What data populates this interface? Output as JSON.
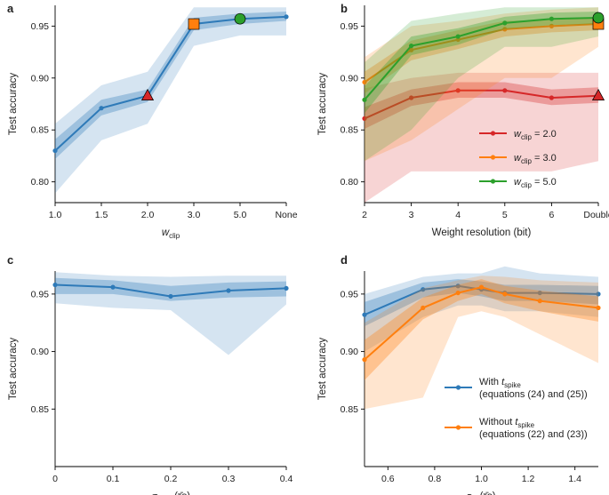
{
  "chart_data": [
    {
      "panel": "a",
      "type": "line",
      "xlabel_main": "w",
      "xlabel_sub": "clip",
      "ylabel": "Test accuracy",
      "ylim": [
        0.78,
        0.97
      ],
      "yticks": [
        0.8,
        0.85,
        0.9,
        0.95
      ],
      "ytick_labels": [
        "0.80",
        "0.85",
        "0.90",
        "0.95"
      ],
      "categories": [
        "1.0",
        "1.5",
        "2.0",
        "3.0",
        "5.0",
        "None"
      ],
      "series": [
        {
          "name": "accuracy",
          "color": "#2e7ab8",
          "values": [
            0.83,
            0.871,
            0.883,
            0.952,
            0.957,
            0.959
          ],
          "inner_low": [
            0.822,
            0.864,
            0.877,
            0.946,
            0.952,
            0.955
          ],
          "inner_high": [
            0.841,
            0.879,
            0.889,
            0.958,
            0.962,
            0.964
          ],
          "outer_low": [
            0.789,
            0.84,
            0.856,
            0.931,
            0.941,
            0.941
          ],
          "outer_high": [
            0.856,
            0.893,
            0.906,
            0.968,
            0.968,
            0.968
          ]
        }
      ],
      "markers": [
        {
          "index": 2,
          "shape": "triangle",
          "color": "#d62728"
        },
        {
          "index": 3,
          "shape": "square",
          "color": "#ff7f0e"
        },
        {
          "index": 4,
          "shape": "circle",
          "color": "#2ca02c"
        }
      ]
    },
    {
      "panel": "b",
      "type": "line",
      "xlabel": "Weight resolution (bit)",
      "ylabel": "Test accuracy",
      "ylim": [
        0.78,
        0.97
      ],
      "yticks": [
        0.8,
        0.85,
        0.9,
        0.95
      ],
      "ytick_labels": [
        "0.80",
        "0.85",
        "0.90",
        "0.95"
      ],
      "categories": [
        "2",
        "3",
        "4",
        "5",
        "6",
        "Double"
      ],
      "legend_position": "lower-right",
      "series": [
        {
          "name": "2.0",
          "legend_prefix": "w",
          "legend_sub": "clip",
          "legend_suffix": " = 2.0",
          "color": "#d62728",
          "values": [
            0.861,
            0.881,
            0.888,
            0.888,
            0.881,
            0.883
          ],
          "inner_low": [
            0.851,
            0.873,
            0.881,
            0.881,
            0.874,
            0.876
          ],
          "inner_high": [
            0.872,
            0.889,
            0.896,
            0.896,
            0.889,
            0.891
          ],
          "outer_low": [
            0.78,
            0.81,
            0.81,
            0.81,
            0.81,
            0.82
          ],
          "outer_high": [
            0.89,
            0.9,
            0.905,
            0.905,
            0.905,
            0.905
          ]
        },
        {
          "name": "3.0",
          "legend_prefix": "w",
          "legend_sub": "clip",
          "legend_suffix": " = 3.0",
          "color": "#ff7f0e",
          "values": [
            0.896,
            0.927,
            0.937,
            0.947,
            0.95,
            0.952
          ],
          "inner_low": [
            0.885,
            0.917,
            0.928,
            0.94,
            0.944,
            0.946
          ],
          "inner_high": [
            0.906,
            0.936,
            0.946,
            0.955,
            0.956,
            0.958
          ],
          "outer_low": [
            0.82,
            0.84,
            0.87,
            0.9,
            0.9,
            0.93
          ],
          "outer_high": [
            0.92,
            0.95,
            0.955,
            0.962,
            0.966,
            0.968
          ]
        },
        {
          "name": "5.0",
          "legend_prefix": "w",
          "legend_sub": "clip",
          "legend_suffix": " = 5.0",
          "color": "#2ca02c",
          "values": [
            0.879,
            0.931,
            0.94,
            0.953,
            0.957,
            0.958
          ],
          "inner_low": [
            0.866,
            0.922,
            0.932,
            0.947,
            0.951,
            0.952
          ],
          "inner_high": [
            0.892,
            0.94,
            0.948,
            0.959,
            0.963,
            0.964
          ],
          "outer_low": [
            0.82,
            0.85,
            0.9,
            0.93,
            0.93,
            0.94
          ],
          "outer_high": [
            0.915,
            0.955,
            0.962,
            0.968,
            0.968,
            0.968
          ]
        }
      ],
      "markers": [
        {
          "series": 0,
          "index": 5,
          "shape": "triangle",
          "color": "#d62728"
        },
        {
          "series": 1,
          "index": 5,
          "shape": "square",
          "color": "#ff7f0e"
        },
        {
          "series": 2,
          "index": 5,
          "shape": "circle",
          "color": "#2ca02c"
        }
      ]
    },
    {
      "panel": "c",
      "type": "line",
      "xlabel_main": "σ",
      "xlabel_sub": "τs/m",
      "xlabel_tail": " (τ̄s)",
      "ylabel": "Test accuracy",
      "ylim": [
        0.8,
        0.97
      ],
      "xlim": [
        0,
        0.4
      ],
      "yticks": [
        0.85,
        0.9,
        0.95
      ],
      "ytick_labels": [
        "0.85",
        "0.90",
        "0.95"
      ],
      "xticks": [
        0,
        0.1,
        0.2,
        0.3,
        0.4
      ],
      "xtick_labels": [
        "0",
        "0.1",
        "0.2",
        "0.3",
        "0.4"
      ],
      "series": [
        {
          "name": "accuracy",
          "color": "#2e7ab8",
          "x": [
            0,
            0.1,
            0.2,
            0.3,
            0.4
          ],
          "values": [
            0.958,
            0.956,
            0.948,
            0.953,
            0.955
          ],
          "inner_low": [
            0.95,
            0.95,
            0.944,
            0.947,
            0.948
          ],
          "inner_high": [
            0.964,
            0.962,
            0.957,
            0.96,
            0.961
          ],
          "outer_low": [
            0.942,
            0.938,
            0.936,
            0.897,
            0.941
          ],
          "outer_high": [
            0.969,
            0.966,
            0.965,
            0.966,
            0.966
          ]
        }
      ]
    },
    {
      "panel": "d",
      "type": "line",
      "xlabel_main": "τ",
      "xlabel_sub": "m",
      "xlabel_tail": " (τ̄s)",
      "ylabel": "Test accuracy",
      "ylim": [
        0.8,
        0.97
      ],
      "xlim": [
        0.5,
        1.5
      ],
      "yticks": [
        0.85,
        0.9,
        0.95
      ],
      "ytick_labels": [
        "0.85",
        "0.90",
        "0.95"
      ],
      "xticks": [
        0.6,
        0.8,
        1.0,
        1.2,
        1.4
      ],
      "xtick_labels": [
        "0.6",
        "0.8",
        "1.0",
        "1.2",
        "1.4"
      ],
      "legend_position": "lower-right",
      "series": [
        {
          "name": "With tspike",
          "legend_line1_prefix": "With ",
          "legend_line1_var": "t",
          "legend_line1_sub": "spike",
          "legend_line2": "(equations (24) and (25))",
          "color": "#2e7ab8",
          "x": [
            0.5,
            0.75,
            0.9,
            1.0,
            1.1,
            1.25,
            1.5
          ],
          "values": [
            0.932,
            0.954,
            0.957,
            0.954,
            0.951,
            0.951,
            0.95
          ],
          "inner_low": [
            0.922,
            0.947,
            0.951,
            0.948,
            0.944,
            0.944,
            0.941
          ],
          "inner_high": [
            0.943,
            0.96,
            0.963,
            0.961,
            0.958,
            0.958,
            0.957
          ],
          "outer_low": [
            0.9,
            0.93,
            0.94,
            0.94,
            0.935,
            0.935,
            0.93
          ],
          "outer_high": [
            0.95,
            0.965,
            0.968,
            0.968,
            0.974,
            0.968,
            0.965
          ]
        },
        {
          "name": "Without tspike",
          "legend_line1_prefix": "Without ",
          "legend_line1_var": "t",
          "legend_line1_sub": "spike",
          "legend_line2": "(equations (22) and (23))",
          "color": "#ff7f0e",
          "x": [
            0.5,
            0.75,
            0.9,
            1.0,
            1.1,
            1.25,
            1.5
          ],
          "values": [
            0.893,
            0.938,
            0.951,
            0.956,
            0.95,
            0.944,
            0.938
          ],
          "inner_low": [
            0.875,
            0.928,
            0.944,
            0.95,
            0.942,
            0.935,
            0.926
          ],
          "inner_high": [
            0.91,
            0.947,
            0.958,
            0.963,
            0.957,
            0.953,
            0.948
          ],
          "outer_low": [
            0.85,
            0.86,
            0.93,
            0.935,
            0.93,
            0.915,
            0.89
          ],
          "outer_high": [
            0.925,
            0.955,
            0.962,
            0.966,
            0.965,
            0.962,
            0.96
          ]
        }
      ]
    }
  ]
}
